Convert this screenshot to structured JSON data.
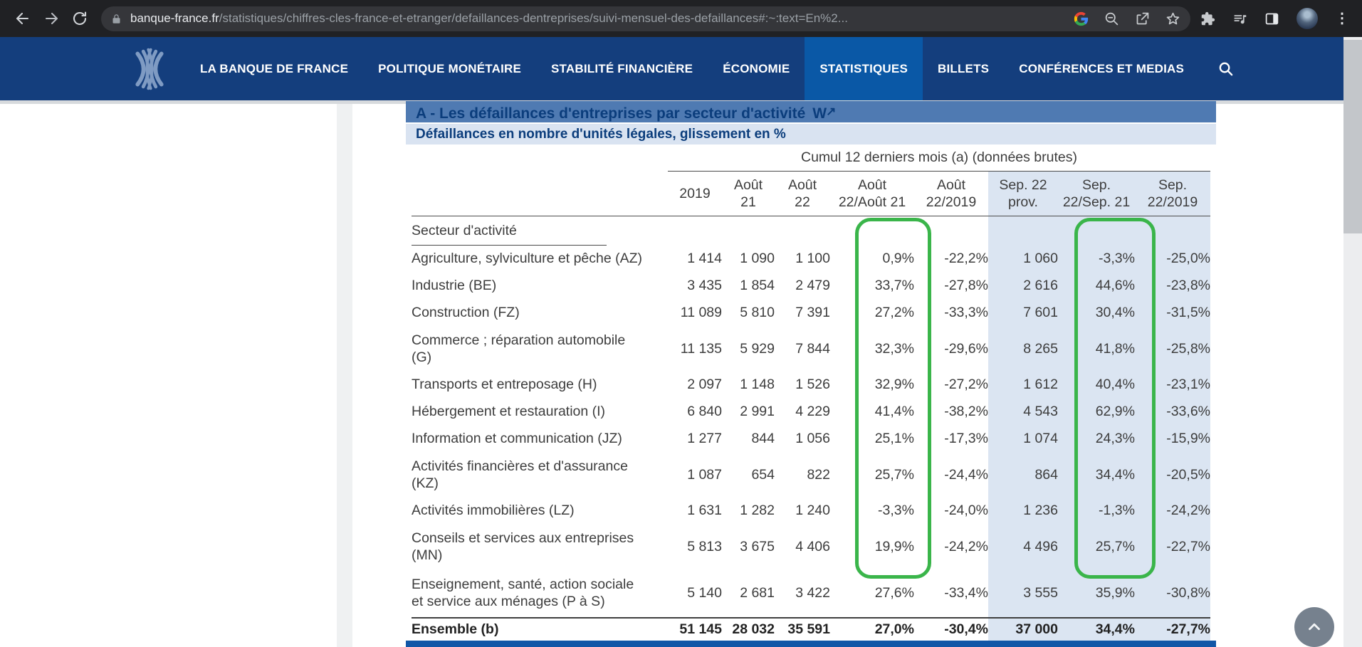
{
  "browser": {
    "url_domain": "banque-france.fr",
    "url_path": "/statistiques/chiffres-cles-france-et-etranger/defaillances-dentreprises/suivi-mensuel-des-defaillances#:~:text=En%2..."
  },
  "nav": {
    "items": [
      {
        "label": "LA BANQUE DE FRANCE",
        "active": false
      },
      {
        "label": "POLITIQUE MONÉTAIRE",
        "active": false
      },
      {
        "label": "STABILITÉ FINANCIÈRE",
        "active": false
      },
      {
        "label": "ÉCONOMIE",
        "active": false
      },
      {
        "label": "STATISTIQUES",
        "active": true
      },
      {
        "label": "BILLETS",
        "active": false
      },
      {
        "label": "CONFÉRENCES ET MEDIAS",
        "active": false
      }
    ]
  },
  "page": {
    "section_title": "A - Les défaillances d'entreprises par secteur d'activité",
    "section_title_link_icon": "W",
    "table_subtitle": "Défaillances en nombre d'unités légales, glissement en %",
    "group_header": "Cumul 12 derniers mois (a) (données brutes)",
    "row_header_label": "Secteur d'activité",
    "columns": [
      "2019",
      "Août\n21",
      "Août\n22",
      "Août\n22/Août 21",
      "Août\n22/2019",
      "Sep. 22\nprov.",
      "Sep.\n22/Sep. 21",
      "Sep.\n22/2019"
    ],
    "shaded_columns": [
      "Sep. 22 prov.",
      "Sep. 22/Sep. 21",
      "Sep. 22/2019"
    ],
    "highlighted_columns": [
      "Août 22/Août 21",
      "Sep. 22/Sep. 21"
    ],
    "highlight_color": "#3ab54a",
    "rows": [
      {
        "label": "Agriculture, sylviculture et pêche (AZ)",
        "values": [
          "1 414",
          "1 090",
          "1 100",
          "0,9%",
          "-22,2%",
          "1 060",
          "-3,3%",
          "-25,0%"
        ]
      },
      {
        "label": "Industrie (BE)",
        "values": [
          "3 435",
          "1 854",
          "2 479",
          "33,7%",
          "-27,8%",
          "2 616",
          "44,6%",
          "-23,8%"
        ]
      },
      {
        "label": "Construction (FZ)",
        "values": [
          "11 089",
          "5 810",
          "7 391",
          "27,2%",
          "-33,3%",
          "7 601",
          "30,4%",
          "-31,5%"
        ]
      },
      {
        "label": "Commerce ; réparation automobile\n(G)",
        "values": [
          "11 135",
          "5 929",
          "7 844",
          "32,3%",
          "-29,6%",
          "8 265",
          "41,8%",
          "-25,8%"
        ]
      },
      {
        "label": "Transports et entreposage (H)",
        "values": [
          "2 097",
          "1 148",
          "1 526",
          "32,9%",
          "-27,2%",
          "1 612",
          "40,4%",
          "-23,1%"
        ]
      },
      {
        "label": "Hébergement et restauration (I)",
        "values": [
          "6 840",
          "2 991",
          "4 229",
          "41,4%",
          "-38,2%",
          "4 543",
          "62,9%",
          "-33,6%"
        ]
      },
      {
        "label": "Information et communication (JZ)",
        "values": [
          "1 277",
          "844",
          "1 056",
          "25,1%",
          "-17,3%",
          "1 074",
          "24,3%",
          "-15,9%"
        ]
      },
      {
        "label": "Activités financières et d'assurance\n(KZ)",
        "values": [
          "1 087",
          "654",
          "822",
          "25,7%",
          "-24,4%",
          "864",
          "34,4%",
          "-20,5%"
        ]
      },
      {
        "label": "Activités immobilières (LZ)",
        "values": [
          "1 631",
          "1 282",
          "1 240",
          "-3,3%",
          "-24,0%",
          "1 236",
          "-1,3%",
          "-24,2%"
        ]
      },
      {
        "label": "Conseils et services aux entreprises\n(MN)",
        "values": [
          "5 813",
          "3 675",
          "4 406",
          "19,9%",
          "-24,2%",
          "4 496",
          "25,7%",
          "-22,7%"
        ]
      },
      {
        "label": "Enseignement, santé, action sociale\net service aux ménages (P à S)",
        "values": [
          "5 140",
          "2 681",
          "3 422",
          "27,6%",
          "-33,4%",
          "3 555",
          "35,9%",
          "-30,8%"
        ]
      }
    ],
    "total_row": {
      "label": "Ensemble (b)",
      "values": [
        "51 145",
        "28 032",
        "35 591",
        "27,0%",
        "-30,4%",
        "37 000",
        "34,4%",
        "-27,7%"
      ]
    }
  }
}
